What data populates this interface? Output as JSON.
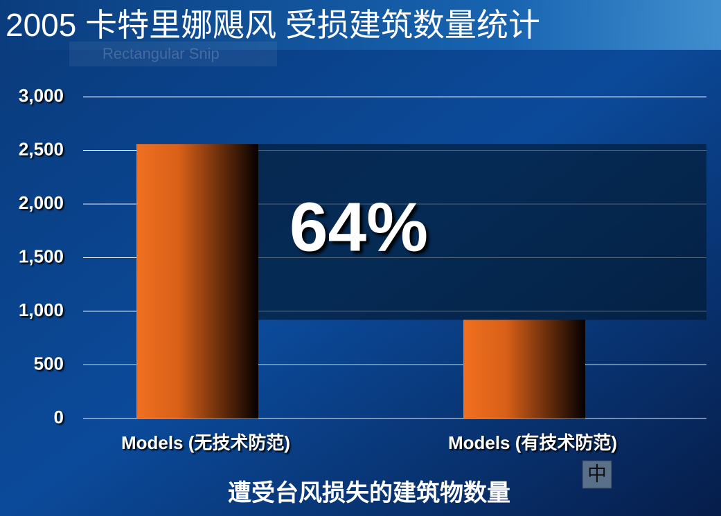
{
  "chart_data": {
    "type": "bar",
    "title": "2005 卡特里娜飓风  受损建筑数量统计",
    "x_label": "遭受台风损失的建筑物数量",
    "categories": [
      "Models (无技术防范)",
      "Models (有技术防范)"
    ],
    "values": [
      2560,
      920
    ],
    "color": "#f07020",
    "annotation": "64%",
    "ylim": [
      0,
      3000
    ],
    "yticks": [
      0,
      500,
      {
        "value": 1000,
        "label": "1,000"
      },
      {
        "value": 1500,
        "label": "1,500"
      },
      {
        "value": 2000,
        "label": "2,000"
      },
      {
        "value": 2500,
        "label": "2,500"
      },
      {
        "value": 3000,
        "label": "3,000"
      }
    ],
    "grid": true
  },
  "snip_label": "Rectangular Snip",
  "ime_indicator": "中"
}
